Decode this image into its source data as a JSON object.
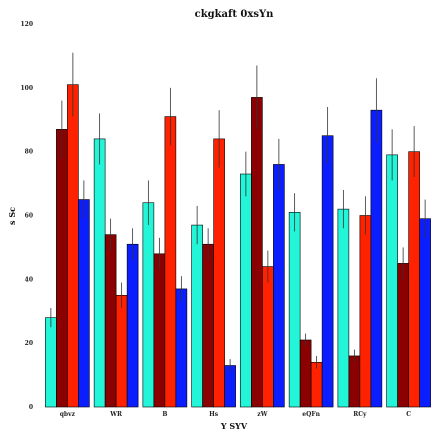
{
  "chart_data": {
    "type": "bar",
    "title": "ckgkaft 0xsYn",
    "xlabel": "Y SYV",
    "ylabel": "s Sc",
    "ylim": [
      0,
      120
    ],
    "yticks": [
      0,
      20,
      40,
      60,
      80,
      100,
      120
    ],
    "grid": false,
    "legend": "none",
    "categories": [
      "qbvz",
      "WR",
      "B",
      "Hs",
      "zW",
      "eQFn",
      "RCy",
      "C"
    ],
    "series": [
      {
        "color": "#22f5d8",
        "values": [
          28,
          84,
          64,
          57,
          73,
          61,
          62,
          79
        ],
        "errors": [
          3,
          8,
          7,
          6,
          7,
          6,
          6,
          8
        ]
      },
      {
        "color": "#8b0000",
        "values": [
          87,
          54,
          48,
          51,
          97,
          21,
          16,
          45
        ],
        "errors": [
          9,
          5,
          5,
          5,
          10,
          2,
          2,
          5
        ]
      },
      {
        "color": "#ff2200",
        "values": [
          101,
          35,
          91,
          84,
          44,
          14,
          60,
          80
        ],
        "errors": [
          10,
          4,
          9,
          9,
          5,
          2,
          6,
          8
        ]
      },
      {
        "color": "#0a1eff",
        "values": [
          65,
          51,
          37,
          13,
          76,
          85,
          93,
          59
        ],
        "errors": [
          6,
          5,
          4,
          2,
          8,
          9,
          10,
          6
        ]
      }
    ]
  }
}
